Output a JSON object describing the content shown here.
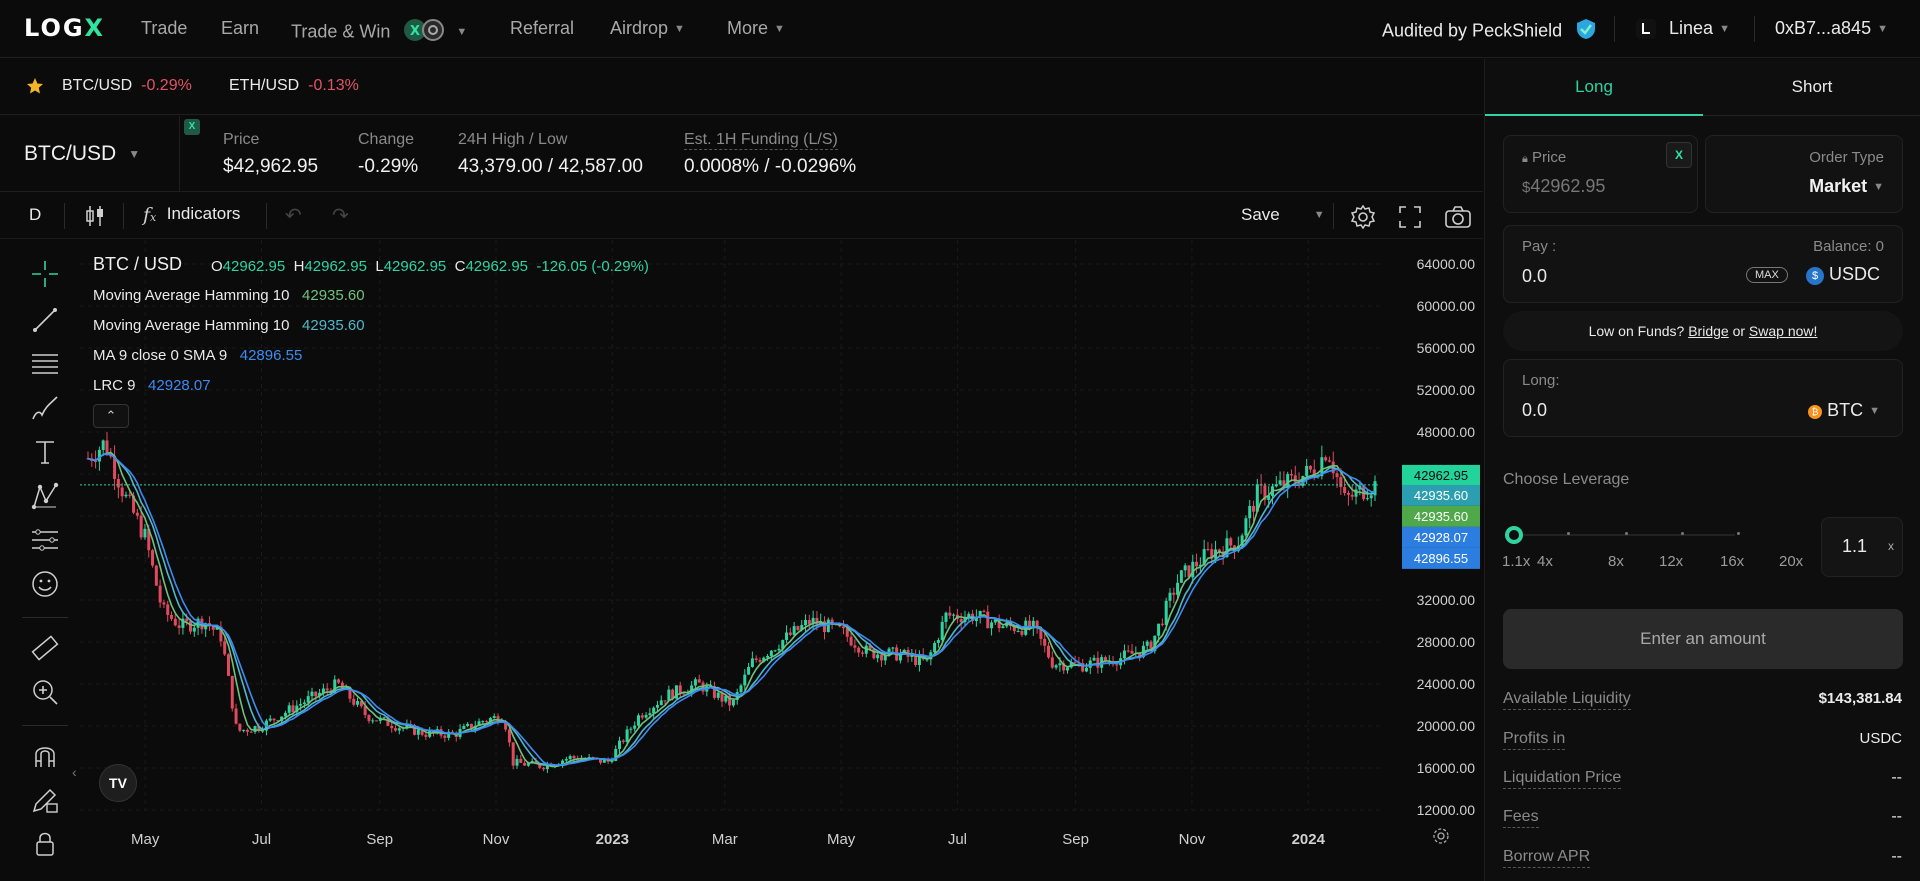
{
  "nav": {
    "logo": "LOGX",
    "items": [
      "Trade",
      "Earn",
      "Trade & Win",
      "Referral",
      "Airdrop",
      "More"
    ],
    "audited": "Audited by PeckShield",
    "network": "Linea",
    "wallet": "0xB7...a845"
  },
  "tickers": [
    {
      "pair": "BTC/USD",
      "change": "-0.29%"
    },
    {
      "pair": "ETH/USD",
      "change": "-0.13%"
    }
  ],
  "market": {
    "pair": "BTC/USD",
    "price_label": "Price",
    "price": "$42,962.95",
    "change_label": "Change",
    "change": "-0.29%",
    "hl_label": "24H High / Low",
    "hl": "43,379.00 / 42,587.00",
    "funding_label": "Est. 1H Funding (L/S)",
    "funding": "0.0008% / -0.0296%"
  },
  "toolbar": {
    "interval": "D",
    "indicators": "Indicators",
    "save": "Save"
  },
  "legend": {
    "symbol": "BTC / USD",
    "o": "42962.95",
    "h": "42962.95",
    "l": "42962.95",
    "c": "42962.95",
    "chg": "-126.05 (-0.29%)",
    "studies": [
      {
        "name": "Moving Average Hamming 10",
        "value": "42935.60",
        "color": "#6fc27a"
      },
      {
        "name": "Moving Average Hamming 10",
        "value": "42935.60",
        "color": "#4fb8c9"
      },
      {
        "name": "MA 9 close 0 SMA 9",
        "value": "42896.55",
        "color": "#3d8bf2"
      },
      {
        "name": "LRC 9",
        "value": "42928.07",
        "color": "#3d8bf2"
      }
    ]
  },
  "chart_data": {
    "type": "line",
    "title": "BTC / USD",
    "x": [
      "2022-04-01",
      "2022-04-10",
      "2022-04-20",
      "2022-05-01",
      "2022-05-10",
      "2022-05-20",
      "2022-06-01",
      "2022-06-10",
      "2022-06-18",
      "2022-07-01",
      "2022-07-20",
      "2022-08-10",
      "2022-08-25",
      "2022-09-10",
      "2022-09-25",
      "2022-10-10",
      "2022-10-25",
      "2022-11-05",
      "2022-11-10",
      "2022-11-25",
      "2022-12-10",
      "2022-12-30",
      "2023-01-15",
      "2023-01-30",
      "2023-02-15",
      "2023-03-05",
      "2023-03-15",
      "2023-03-30",
      "2023-04-15",
      "2023-05-01",
      "2023-05-15",
      "2023-06-01",
      "2023-06-15",
      "2023-06-25",
      "2023-07-10",
      "2023-07-25",
      "2023-08-10",
      "2023-08-20",
      "2023-09-05",
      "2023-09-25",
      "2023-10-10",
      "2023-10-25",
      "2023-11-10",
      "2023-11-25",
      "2023-12-05",
      "2023-12-20",
      "2024-01-05",
      "2024-01-11",
      "2024-01-20",
      "2024-01-30",
      "2024-02-05"
    ],
    "series": [
      {
        "values": [
          45500,
          47000,
          42000,
          38000,
          31000,
          29500,
          30000,
          28500,
          19500,
          20000,
          22000,
          24000,
          21000,
          20000,
          19300,
          19200,
          20500,
          21000,
          16500,
          16200,
          17000,
          16600,
          21000,
          23000,
          24000,
          22000,
          26000,
          28000,
          30000,
          29000,
          27000,
          26800,
          26000,
          30500,
          30500,
          29500,
          29300,
          26000,
          25800,
          26500,
          27500,
          34000,
          36500,
          37500,
          42000,
          43000,
          44500,
          46500,
          41500,
          42500,
          42962.95
        ]
      }
    ],
    "ylim": [
      10000,
      64000
    ],
    "yticks": [
      "64000.00",
      "60000.00",
      "56000.00",
      "52000.00",
      "48000.00",
      "44000.00",
      "40000.00",
      "36000.00",
      "32000.00",
      "28000.00",
      "24000.00",
      "20000.00",
      "16000.00",
      "12000.00"
    ],
    "xticks": [
      "May",
      "Jul",
      "Sep",
      "Nov",
      "2023",
      "Mar",
      "May",
      "Jul",
      "Sep",
      "Nov",
      "2024"
    ],
    "price_tags": [
      {
        "value": "42962.95",
        "color": "#22d39a"
      },
      {
        "value": "42935.60",
        "color": "#2b9fb0"
      },
      {
        "value": "42935.60",
        "color": "#4fa84a"
      },
      {
        "value": "42928.07",
        "color": "#2b7ee0"
      },
      {
        "value": "42896.55",
        "color": "#2b7ee0"
      }
    ]
  },
  "panel": {
    "tab_long": "Long",
    "tab_short": "Short",
    "price_label": "Price",
    "price_prefix": "$",
    "price_value": "42962.95",
    "order_type_label": "Order Type",
    "order_type": "Market",
    "pay_label": "Pay :",
    "balance": "Balance: 0",
    "pay_value": "0.0",
    "max": "MAX",
    "pay_token": "USDC",
    "low_funds": "Low on Funds?",
    "bridge": "Bridge",
    "or": "or",
    "swap": "Swap now!",
    "long_label": "Long:",
    "long_value": "0.0",
    "long_token": "BTC",
    "leverage_label": "Choose Leverage",
    "leverage_ticks": [
      "1.1x",
      "4x",
      "8x",
      "12x",
      "16x",
      "20x"
    ],
    "leverage_value": "1.1",
    "leverage_unit": "x",
    "enter_button": "Enter an amount",
    "info": [
      {
        "label": "Available Liquidity",
        "value": "$143,381.84"
      },
      {
        "label": "Profits in",
        "value": "USDC"
      },
      {
        "label": "Liquidation Price",
        "value": "--"
      },
      {
        "label": "Fees",
        "value": "--"
      },
      {
        "label": "Borrow APR",
        "value": "--"
      }
    ]
  }
}
